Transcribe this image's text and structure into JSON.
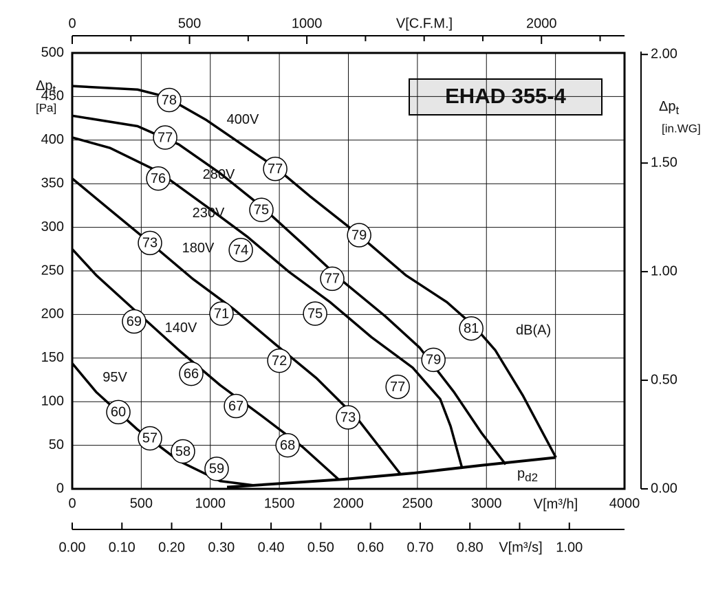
{
  "chart_data": {
    "type": "line",
    "title": "EHAD 355-4",
    "y_label": "Δp",
    "y_label_sub": "t",
    "y_unit": "[Pa]",
    "y2_label": "Δp",
    "y2_label_sub": "t",
    "y2_unit": "[in.WG]",
    "x_label": "V[m³/h]",
    "x2_label": "V[C.F.M.]",
    "x3_label": "V[m³/s]",
    "db_unit": "dB(A)",
    "xlim": [
      0,
      4000
    ],
    "xticks": [
      0,
      500,
      1000,
      1500,
      2000,
      2500,
      3000,
      {
        "value": 3500,
        "label": null
      },
      4000
    ],
    "ylim": [
      0,
      500
    ],
    "yticks": [
      0,
      50,
      100,
      150,
      200,
      250,
      300,
      350,
      400,
      450,
      500
    ],
    "x2lim": [
      0,
      2354
    ],
    "x2ticks": [
      0,
      {
        "value": 250,
        "label": null
      },
      500,
      {
        "value": 750,
        "label": null
      },
      1000,
      {
        "value": 1250,
        "label": null
      },
      {
        "value": 1500,
        "label": null
      },
      {
        "value": 1750,
        "label": null
      },
      2000,
      {
        "value": 2250,
        "label": null
      }
    ],
    "y2lim": [
      0,
      2.007
    ],
    "y2ticks": [
      {
        "value": 0,
        "label": "0.00"
      },
      {
        "value": 0.5,
        "label": "0.50"
      },
      {
        "value": 1,
        "label": "1.00"
      },
      {
        "value": 1.5,
        "label": "1.50"
      },
      {
        "value": 2,
        "label": "2.00"
      }
    ],
    "x3lim": [
      0,
      1.111
    ],
    "x3ticks": [
      {
        "value": 0,
        "label": "0.00"
      },
      {
        "value": 0.1,
        "label": "0.10"
      },
      {
        "value": 0.2,
        "label": "0.20"
      },
      {
        "value": 0.3,
        "label": "0.30"
      },
      {
        "value": 0.4,
        "label": "0.40"
      },
      {
        "value": 0.5,
        "label": "0.50"
      },
      {
        "value": 0.6,
        "label": "0.60"
      },
      {
        "value": 0.7,
        "label": "0.70"
      },
      {
        "value": 0.8,
        "label": "0.80"
      },
      {
        "value": 0.9,
        "label": null
      },
      {
        "value": 1,
        "label": "1.00"
      }
    ],
    "grid": true,
    "color": "#000000",
    "series": [
      {
        "name": "400V",
        "x": [
          0,
          473,
          673,
          972,
          1470,
          1719,
          2063,
          2416,
          2715,
          2915,
          3064,
          3264,
          3503
        ],
        "values": [
          462,
          458,
          450,
          423,
          369,
          336,
          293,
          245,
          214,
          186,
          159,
          107,
          36
        ]
      },
      {
        "name": "280V",
        "x": [
          0,
          473,
          773,
          1071,
          1370,
          1669,
          1968,
          2267,
          2516,
          2765,
          2965,
          3139
        ],
        "values": [
          428,
          416,
          395,
          362,
          324,
          281,
          237,
          198,
          162,
          111,
          64,
          28
        ]
      },
      {
        "name": "230V",
        "x": [
          0,
          274,
          623,
          972,
          1270,
          1569,
          1869,
          2167,
          2466,
          2665,
          2740,
          2825
        ],
        "values": [
          403,
          391,
          364,
          324,
          289,
          249,
          214,
          174,
          139,
          103,
          72,
          23
        ]
      },
      {
        "name": "180V",
        "x": [
          0,
          274,
          573,
          872,
          1171,
          1470,
          1769,
          2068,
          2377
        ],
        "values": [
          356,
          320,
          281,
          241,
          206,
          166,
          127,
          80,
          17
        ]
      },
      {
        "name": "140V",
        "x": [
          0,
          174,
          473,
          773,
          1071,
          1370,
          1669,
          1928
        ],
        "values": [
          275,
          245,
          202,
          159,
          119,
          84,
          48,
          11
        ]
      },
      {
        "name": "95V",
        "x": [
          0,
          174,
          473,
          773,
          1071,
          1320
        ],
        "values": [
          144,
          111,
          68,
          32,
          9,
          4
        ]
      },
      {
        "name": "p",
        "name_sub": "d2",
        "x": [
          1121,
          1968,
          2466,
          2965,
          3503
        ],
        "values": [
          2,
          11,
          18,
          27,
          36
        ]
      }
    ],
    "db_labels": [
      {
        "value": 78,
        "x": 702,
        "y": 446
      },
      {
        "value": 77,
        "x": 673,
        "y": 403
      },
      {
        "value": 76,
        "x": 623,
        "y": 356
      },
      {
        "value": 77,
        "x": 1470,
        "y": 367
      },
      {
        "value": 75,
        "x": 1370,
        "y": 320
      },
      {
        "value": 73,
        "x": 563,
        "y": 282
      },
      {
        "value": 74,
        "x": 1221,
        "y": 274
      },
      {
        "value": 79,
        "x": 2078,
        "y": 291
      },
      {
        "value": 77,
        "x": 1883,
        "y": 241
      },
      {
        "value": 71,
        "x": 1081,
        "y": 201
      },
      {
        "value": 75,
        "x": 1759,
        "y": 201
      },
      {
        "value": 69,
        "x": 448,
        "y": 192
      },
      {
        "value": 81,
        "x": 2890,
        "y": 184
      },
      {
        "value": 72,
        "x": 1500,
        "y": 147
      },
      {
        "value": 79,
        "x": 2616,
        "y": 148
      },
      {
        "value": 66,
        "x": 862,
        "y": 132
      },
      {
        "value": 77,
        "x": 2357,
        "y": 117
      },
      {
        "value": 67,
        "x": 1186,
        "y": 95
      },
      {
        "value": 60,
        "x": 334,
        "y": 88
      },
      {
        "value": 73,
        "x": 1998,
        "y": 82
      },
      {
        "value": 57,
        "x": 563,
        "y": 58
      },
      {
        "value": 68,
        "x": 1560,
        "y": 50
      },
      {
        "value": 58,
        "x": 802,
        "y": 43
      },
      {
        "value": 59,
        "x": 1046,
        "y": 23
      }
    ]
  }
}
